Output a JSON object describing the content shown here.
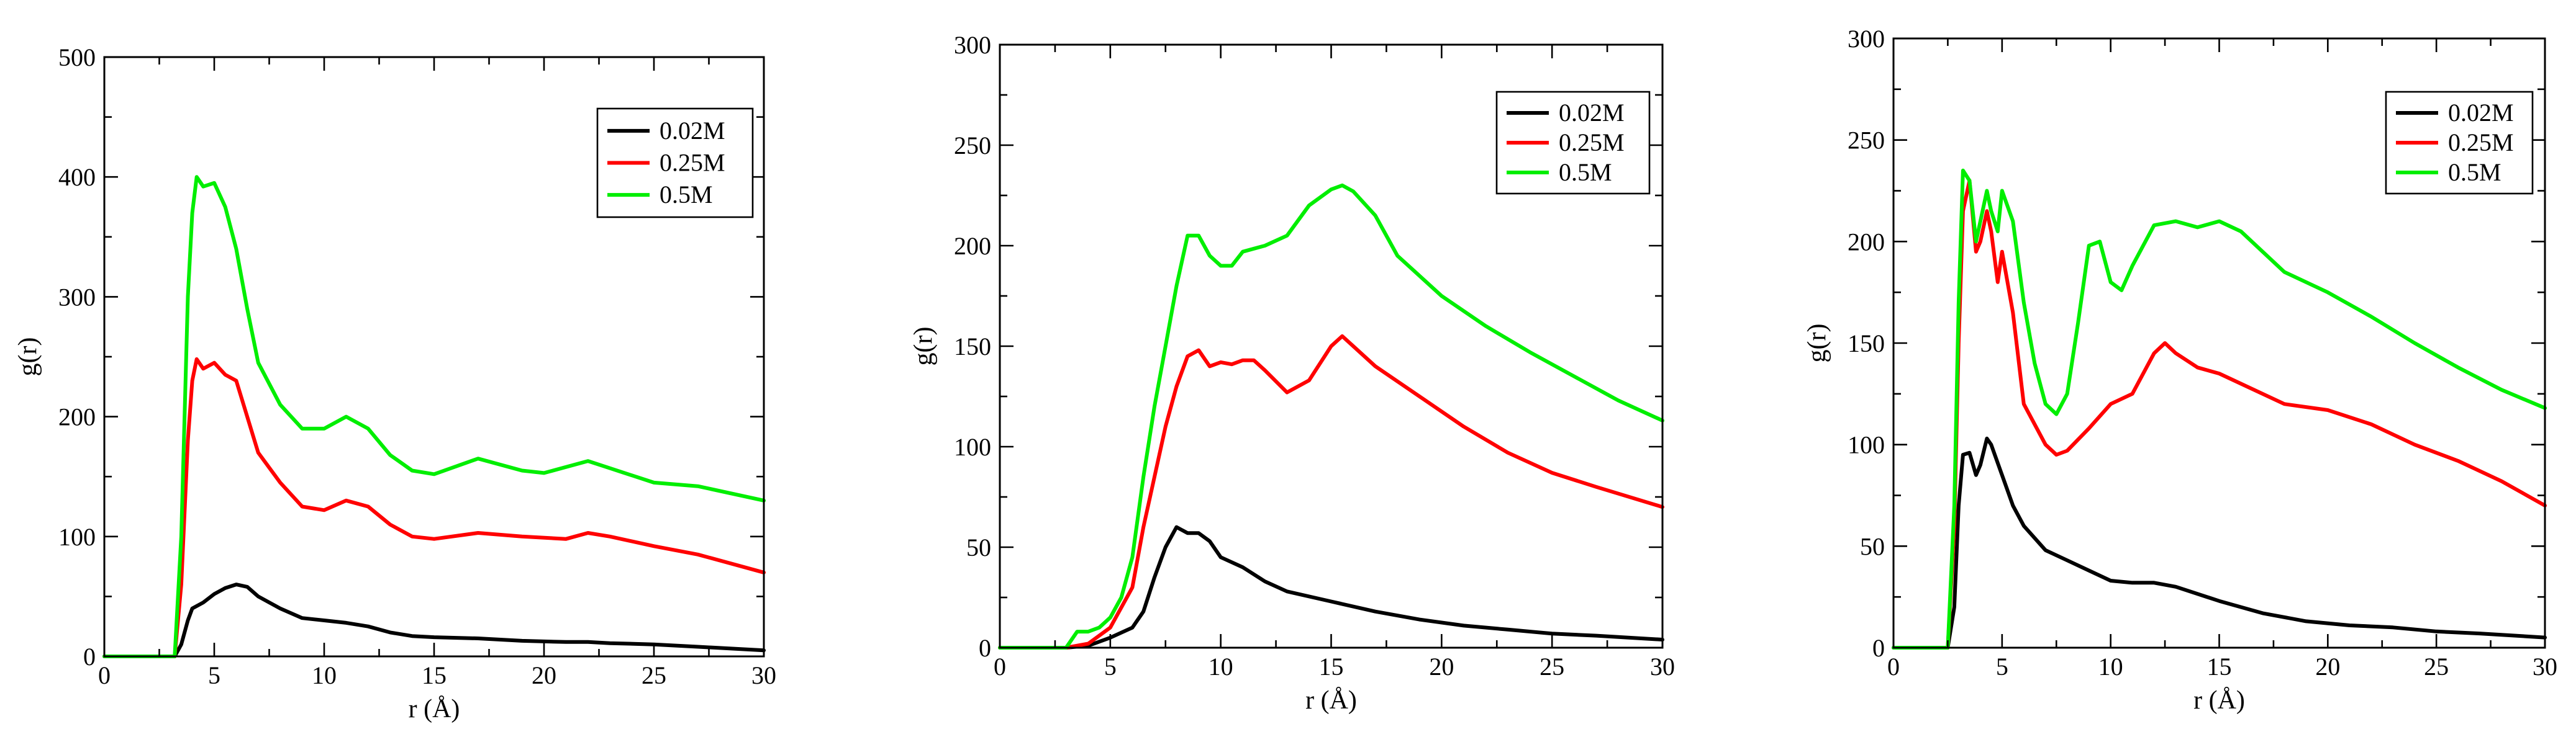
{
  "chart_data": [
    {
      "type": "line",
      "title": "",
      "xlabel": "r (Å)",
      "ylabel": "g(r)",
      "xlim": [
        0,
        30
      ],
      "ylim": [
        0,
        500
      ],
      "xticks": [
        0,
        5,
        10,
        15,
        20,
        25,
        30
      ],
      "yticks": [
        0,
        100,
        200,
        300,
        400,
        500
      ],
      "legend": "top-right",
      "series": [
        {
          "name": "0.02M",
          "color": "#000000",
          "x": [
            0,
            3.2,
            3.5,
            3.8,
            4.0,
            4.5,
            5.0,
            5.5,
            6.0,
            6.5,
            7.0,
            8.0,
            9.0,
            10.0,
            11.0,
            12.0,
            13.0,
            14.0,
            15.0,
            17.0,
            19.0,
            21.0,
            22.0,
            23.0,
            25.0,
            27.0,
            30.0
          ],
          "y": [
            0,
            0,
            10,
            30,
            40,
            45,
            52,
            57,
            60,
            58,
            50,
            40,
            32,
            30,
            28,
            25,
            20,
            17,
            16,
            15,
            13,
            12,
            12,
            11,
            10,
            8,
            5
          ]
        },
        {
          "name": "0.25M",
          "color": "#ff0000",
          "x": [
            0,
            3.2,
            3.5,
            3.8,
            4.0,
            4.2,
            4.5,
            5.0,
            5.5,
            6.0,
            6.5,
            7.0,
            8.0,
            9.0,
            10.0,
            11.0,
            12.0,
            13.0,
            14.0,
            15.0,
            17.0,
            19.0,
            21.0,
            22.0,
            23.0,
            25.0,
            27.0,
            30.0
          ],
          "y": [
            0,
            0,
            60,
            180,
            230,
            248,
            240,
            245,
            235,
            230,
            200,
            170,
            145,
            125,
            122,
            130,
            125,
            110,
            100,
            98,
            103,
            100,
            98,
            103,
            100,
            92,
            85,
            70
          ]
        },
        {
          "name": "0.5M",
          "color": "#00ee00",
          "x": [
            0,
            3.2,
            3.5,
            3.8,
            4.0,
            4.2,
            4.5,
            5.0,
            5.5,
            6.0,
            6.5,
            7.0,
            8.0,
            9.0,
            10.0,
            11.0,
            12.0,
            13.0,
            14.0,
            15.0,
            17.0,
            19.0,
            20.0,
            22.0,
            23.0,
            25.0,
            27.0,
            30.0
          ],
          "y": [
            0,
            0,
            100,
            300,
            370,
            400,
            392,
            395,
            375,
            340,
            290,
            245,
            210,
            190,
            190,
            200,
            190,
            168,
            155,
            152,
            165,
            155,
            153,
            163,
            157,
            145,
            142,
            130
          ]
        }
      ]
    },
    {
      "type": "line",
      "title": "",
      "xlabel": "r (Å)",
      "ylabel": "g(r)",
      "xlim": [
        0,
        30
      ],
      "ylim": [
        0,
        300
      ],
      "xticks": [
        0,
        5,
        10,
        15,
        20,
        25,
        30
      ],
      "yticks": [
        0,
        50,
        100,
        150,
        200,
        250,
        300
      ],
      "legend": "top-right",
      "series": [
        {
          "name": "0.02M",
          "color": "#000000",
          "x": [
            0,
            3.0,
            4.0,
            5.0,
            6.0,
            6.5,
            7.0,
            7.5,
            8.0,
            8.5,
            9.0,
            9.5,
            10.0,
            11.0,
            12.0,
            13.0,
            15.0,
            17.0,
            19.0,
            21.0,
            23.0,
            25.0,
            27.0,
            30.0
          ],
          "y": [
            0,
            0,
            1,
            5,
            10,
            18,
            35,
            50,
            60,
            57,
            57,
            53,
            45,
            40,
            33,
            28,
            23,
            18,
            14,
            11,
            9,
            7,
            6,
            4
          ]
        },
        {
          "name": "0.25M",
          "color": "#ff0000",
          "x": [
            0,
            3.0,
            4.0,
            5.0,
            6.0,
            6.5,
            7.0,
            7.5,
            8.0,
            8.5,
            9.0,
            9.5,
            10.0,
            10.5,
            11.0,
            11.5,
            12.0,
            13.0,
            14.0,
            15.0,
            15.5,
            16.0,
            17.0,
            19.0,
            21.0,
            23.0,
            25.0,
            27.0,
            30.0
          ],
          "y": [
            0,
            0,
            2,
            10,
            30,
            60,
            85,
            110,
            130,
            145,
            148,
            140,
            142,
            141,
            143,
            143,
            138,
            127,
            133,
            150,
            155,
            150,
            140,
            125,
            110,
            97,
            87,
            80,
            70
          ]
        },
        {
          "name": "0.5M",
          "color": "#00ee00",
          "x": [
            0,
            3.0,
            3.5,
            4.0,
            4.5,
            5.0,
            5.5,
            6.0,
            6.5,
            7.0,
            7.5,
            8.0,
            8.5,
            9.0,
            9.5,
            10.0,
            10.5,
            11.0,
            12.0,
            13.0,
            14.0,
            15.0,
            15.5,
            16.0,
            17.0,
            18.0,
            20.0,
            22.0,
            24.0,
            26.0,
            28.0,
            30.0
          ],
          "y": [
            0,
            0,
            8,
            8,
            10,
            15,
            25,
            45,
            85,
            120,
            150,
            180,
            205,
            205,
            195,
            190,
            190,
            197,
            200,
            205,
            220,
            228,
            230,
            227,
            215,
            195,
            175,
            160,
            147,
            135,
            123,
            113
          ]
        }
      ]
    },
    {
      "type": "line",
      "title": "",
      "xlabel": "r (Å)",
      "ylabel": "g(r)",
      "xlim": [
        0,
        30
      ],
      "ylim": [
        0,
        300
      ],
      "xticks": [
        0,
        5,
        10,
        15,
        20,
        25,
        30
      ],
      "yticks": [
        0,
        50,
        100,
        150,
        200,
        250,
        300
      ],
      "legend": "top-right",
      "series": [
        {
          "name": "0.02M",
          "color": "#000000",
          "x": [
            0,
            2.5,
            2.8,
            3.0,
            3.2,
            3.5,
            3.8,
            4.0,
            4.3,
            4.5,
            5.0,
            5.5,
            6.0,
            7.0,
            8.0,
            9.0,
            10.0,
            11.0,
            12.0,
            13.0,
            15.0,
            17.0,
            19.0,
            21.0,
            23.0,
            25.0,
            27.0,
            30.0
          ],
          "y": [
            0,
            0,
            20,
            70,
            95,
            96,
            85,
            90,
            103,
            100,
            85,
            70,
            60,
            48,
            43,
            38,
            33,
            32,
            32,
            30,
            23,
            17,
            13,
            11,
            10,
            8,
            7,
            5
          ]
        },
        {
          "name": "0.25M",
          "color": "#ff0000",
          "x": [
            0,
            2.5,
            2.8,
            3.0,
            3.2,
            3.5,
            3.8,
            4.0,
            4.3,
            4.5,
            4.8,
            5.0,
            5.5,
            6.0,
            6.5,
            7.0,
            7.5,
            8.0,
            9.0,
            10.0,
            11.0,
            12.0,
            12.5,
            13.0,
            14.0,
            15.0,
            16.0,
            18.0,
            20.0,
            22.0,
            24.0,
            26.0,
            28.0,
            30.0
          ],
          "y": [
            0,
            0,
            60,
            150,
            215,
            230,
            195,
            200,
            215,
            205,
            180,
            195,
            165,
            120,
            110,
            100,
            95,
            97,
            108,
            120,
            125,
            145,
            150,
            145,
            138,
            135,
            130,
            120,
            117,
            110,
            100,
            92,
            82,
            70
          ]
        },
        {
          "name": "0.5M",
          "color": "#00ee00",
          "x": [
            0,
            2.5,
            2.8,
            3.0,
            3.2,
            3.5,
            3.8,
            4.0,
            4.3,
            4.5,
            4.8,
            5.0,
            5.5,
            6.0,
            6.5,
            7.0,
            7.5,
            8.0,
            8.5,
            9.0,
            9.5,
            10.0,
            10.5,
            11.0,
            12.0,
            13.0,
            14.0,
            15.0,
            16.0,
            17.0,
            18.0,
            20.0,
            22.0,
            24.0,
            26.0,
            28.0,
            30.0
          ],
          "y": [
            0,
            0,
            70,
            170,
            235,
            230,
            200,
            210,
            225,
            215,
            205,
            225,
            210,
            170,
            140,
            120,
            115,
            125,
            160,
            198,
            200,
            180,
            176,
            188,
            208,
            210,
            207,
            210,
            205,
            195,
            185,
            175,
            163,
            150,
            138,
            127,
            118
          ]
        }
      ]
    }
  ]
}
